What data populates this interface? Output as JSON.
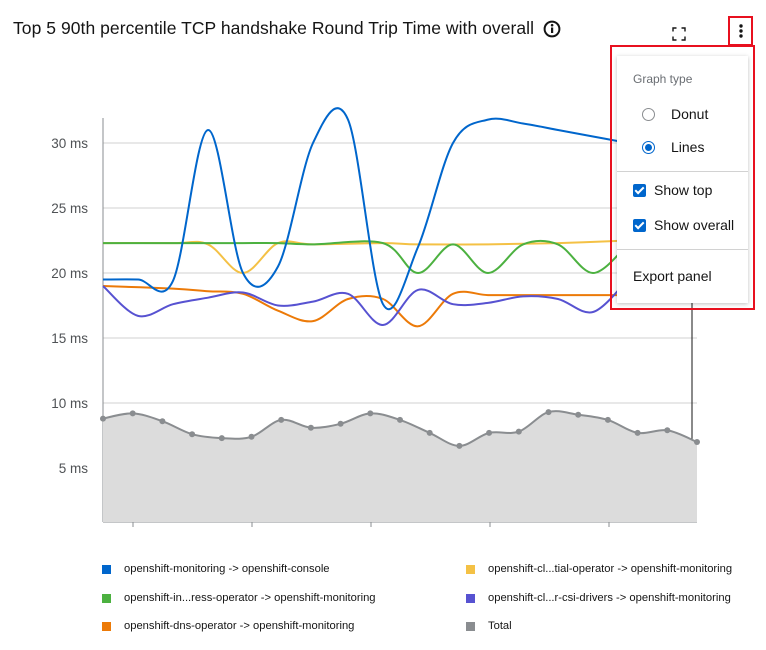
{
  "panel": {
    "title": "Top 5 90th percentile TCP handshake Round Trip Time with overall",
    "info_icon": "info-circle-icon",
    "expand_icon": "expand-icon",
    "kebab_icon": "kebab-vertical-icon"
  },
  "menu": {
    "graph_type_label": "Graph type",
    "options": [
      {
        "label": "Donut",
        "selected": false
      },
      {
        "label": "Lines",
        "selected": true
      }
    ],
    "checkboxes": [
      {
        "label": "Show top",
        "checked": true
      },
      {
        "label": "Show overall",
        "checked": true
      }
    ],
    "export_label": "Export panel"
  },
  "chart_data": {
    "type": "line",
    "ylabel_ticks": [
      "30 ms",
      "25 ms",
      "20 ms",
      "15 ms",
      "10 ms",
      "5 ms"
    ],
    "ylim": [
      0,
      32
    ],
    "grid": true,
    "series": [
      {
        "name": "openshift-monitoring -> openshift-console",
        "color": "#0066cc",
        "values": [
          [
            0,
            19.5
          ],
          [
            1,
            19.5
          ],
          [
            2,
            19.4
          ],
          [
            3,
            31
          ],
          [
            4,
            20
          ],
          [
            5,
            20.5
          ],
          [
            6,
            30
          ],
          [
            7,
            31.8
          ],
          [
            8,
            17.6
          ],
          [
            9,
            22
          ],
          [
            10,
            30
          ],
          [
            11,
            31.8
          ],
          [
            12,
            31.5
          ],
          [
            13,
            31
          ],
          [
            14,
            30.5
          ],
          [
            15,
            30
          ]
        ]
      },
      {
        "name": "openshift-cl...tial-operator -> openshift-monitoring",
        "color": "#f4c145",
        "values": [
          [
            0,
            22.3
          ],
          [
            2,
            22.3
          ],
          [
            3,
            22.2
          ],
          [
            4,
            20
          ],
          [
            5,
            22.3
          ],
          [
            6,
            22.2
          ],
          [
            8,
            22.3
          ],
          [
            9,
            22.2
          ],
          [
            11,
            22.2
          ],
          [
            13,
            22.3
          ],
          [
            15,
            22.5
          ]
        ]
      },
      {
        "name": "openshift-in...ress-operator -> openshift-monitoring",
        "color": "#4cb140",
        "values": [
          [
            0,
            22.3
          ],
          [
            3,
            22.3
          ],
          [
            4,
            22.3
          ],
          [
            5,
            22.3
          ],
          [
            6,
            22.2
          ],
          [
            8,
            22.3
          ],
          [
            9,
            20
          ],
          [
            10,
            22.2
          ],
          [
            11,
            20
          ],
          [
            12,
            22.2
          ],
          [
            13,
            22.2
          ],
          [
            14,
            20
          ],
          [
            15,
            22.2
          ]
        ]
      },
      {
        "name": "openshift-cl...r-csi-drivers -> openshift-monitoring",
        "color": "#5752d1",
        "values": [
          [
            0,
            19
          ],
          [
            1,
            16.7
          ],
          [
            2,
            17.6
          ],
          [
            3,
            18.1
          ],
          [
            4,
            18.5
          ],
          [
            5,
            17.5
          ],
          [
            6,
            17.8
          ],
          [
            7,
            18.4
          ],
          [
            8,
            16
          ],
          [
            9,
            18.7
          ],
          [
            10,
            17.6
          ],
          [
            11,
            17.7
          ],
          [
            12,
            18.2
          ],
          [
            13,
            18
          ],
          [
            14,
            17
          ],
          [
            15,
            19.5
          ]
        ]
      },
      {
        "name": "openshift-dns-operator -> openshift-monitoring",
        "color": "#ec7a08",
        "values": [
          [
            0,
            19
          ],
          [
            2,
            18.8
          ],
          [
            3,
            18.6
          ],
          [
            4,
            18.4
          ],
          [
            5,
            17.1
          ],
          [
            6,
            16.3
          ],
          [
            7,
            18
          ],
          [
            8,
            18
          ],
          [
            9,
            15.9
          ],
          [
            10,
            18.4
          ],
          [
            11,
            18.3
          ],
          [
            12,
            18.3
          ],
          [
            15,
            18.3
          ]
        ]
      },
      {
        "name": "Total",
        "color": "#8a8d90",
        "values": [
          [
            0,
            8.8
          ],
          [
            1,
            9.2
          ],
          [
            2,
            8.6
          ],
          [
            3,
            7.6
          ],
          [
            4,
            7.3
          ],
          [
            5,
            7.4
          ],
          [
            6,
            8.7
          ],
          [
            7,
            8.1
          ],
          [
            8,
            8.4
          ],
          [
            9,
            9.2
          ],
          [
            10,
            8.7
          ],
          [
            11,
            7.7
          ],
          [
            12,
            6.7
          ],
          [
            13,
            7.7
          ],
          [
            14,
            7.8
          ],
          [
            15,
            9.3
          ],
          [
            16,
            9.1
          ],
          [
            17,
            8.7
          ],
          [
            18,
            7.7
          ],
          [
            19,
            7.9
          ],
          [
            20,
            7
          ]
        ]
      }
    ]
  },
  "legend": [
    {
      "label": "openshift-monitoring -> openshift-console",
      "color": "#0066cc"
    },
    {
      "label": "openshift-cl...tial-operator -> openshift-monitoring",
      "color": "#f4c145"
    },
    {
      "label": "openshift-in...ress-operator -> openshift-monitoring",
      "color": "#4cb140"
    },
    {
      "label": "openshift-cl...r-csi-drivers -> openshift-monitoring",
      "color": "#5752d1"
    },
    {
      "label": "openshift-dns-operator -> openshift-monitoring",
      "color": "#ec7a08"
    },
    {
      "label": "Total",
      "color": "#8a8d90"
    }
  ]
}
